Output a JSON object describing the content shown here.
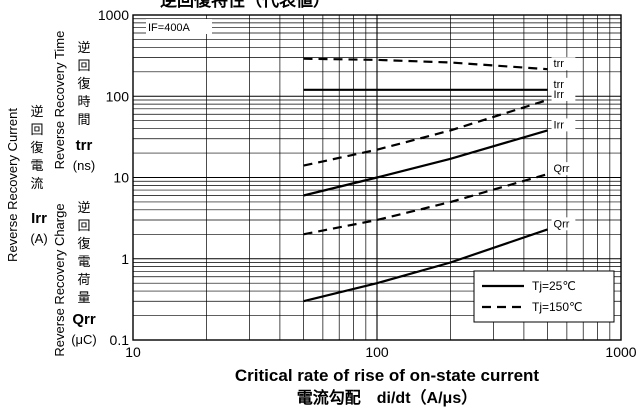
{
  "chart_data": {
    "type": "line",
    "title": "逆回復特性（代表値）",
    "condition": "IF=400A",
    "x_scale": "log",
    "y_scale": "log",
    "xlim": [
      10,
      1000
    ],
    "ylim": [
      0.1,
      1000
    ],
    "x_ticks": [
      "10",
      "100",
      "1000"
    ],
    "y_ticks": [
      "0.1",
      "1",
      "10",
      "100",
      "1000"
    ],
    "xlabel_en": "Critical rate of rise of on-state current",
    "xlabel_jp": "電流勾配　di/dt（A/μs）",
    "ylabels": [
      {
        "en": "Reverse Recovery Current",
        "jp": "逆回復電流",
        "sym": "Irr",
        "unit": "(A)"
      },
      {
        "en": "Reverse Recovery Time",
        "jp": "逆回復時間",
        "sym": "trr",
        "unit": "(ns)"
      },
      {
        "en": "Reverse Recovery Charge",
        "jp": "逆回復電荷量",
        "sym": "Qrr",
        "unit": "(μC)"
      }
    ],
    "legend": {
      "placement": "bottom-right",
      "entries": [
        {
          "label": "Tj=25℃",
          "dash": false
        },
        {
          "label": "Tj=150℃",
          "dash": true
        }
      ]
    },
    "series": [
      {
        "name": "trr",
        "tj": "150℃",
        "dash": true,
        "x": [
          50,
          100,
          200,
          500
        ],
        "y": [
          290,
          280,
          260,
          215
        ]
      },
      {
        "name": "trr",
        "tj": "25℃",
        "dash": false,
        "x": [
          50,
          100,
          200,
          500
        ],
        "y": [
          120,
          120,
          120,
          120
        ]
      },
      {
        "name": "Irr",
        "tj": "150℃",
        "dash": true,
        "x": [
          50,
          100,
          200,
          500
        ],
        "y": [
          14,
          22,
          38,
          90
        ]
      },
      {
        "name": "Irr",
        "tj": "25℃",
        "dash": false,
        "x": [
          50,
          100,
          200,
          500
        ],
        "y": [
          6,
          10,
          17,
          38
        ]
      },
      {
        "name": "Qrr",
        "tj": "150℃",
        "dash": true,
        "x": [
          50,
          100,
          200,
          500
        ],
        "y": [
          2,
          3,
          5,
          11
        ]
      },
      {
        "name": "Qrr",
        "tj": "25℃",
        "dash": false,
        "x": [
          50,
          100,
          200,
          500
        ],
        "y": [
          0.3,
          0.5,
          0.9,
          2.3
        ]
      }
    ],
    "annotations": [
      {
        "text": "trr",
        "x": 500,
        "y": 215
      },
      {
        "text": "trr",
        "x": 500,
        "y": 120
      },
      {
        "text": "Irr",
        "x": 500,
        "y": 90
      },
      {
        "text": "Irr",
        "x": 500,
        "y": 38
      },
      {
        "text": "Qrr",
        "x": 500,
        "y": 11
      },
      {
        "text": "Qrr",
        "x": 500,
        "y": 2.3
      }
    ],
    "grid": true
  }
}
